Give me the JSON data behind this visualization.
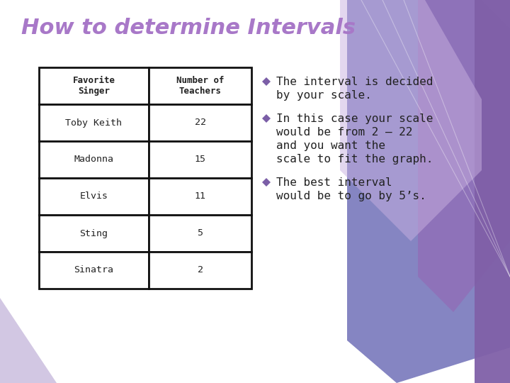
{
  "title": "How to determine Intervals",
  "title_color": "#a878c8",
  "title_fontsize": 22,
  "background_color": "#ffffff",
  "table_headers": [
    "Favorite\nSinger",
    "Number of\nTeachers"
  ],
  "table_rows": [
    [
      "Toby Keith",
      "22"
    ],
    [
      "Madonna",
      "15"
    ],
    [
      "Elvis",
      "11"
    ],
    [
      "Sting",
      "5"
    ],
    [
      "Sinatra",
      "2"
    ]
  ],
  "bullet_points": [
    {
      "lines": [
        "The interval is decided",
        "by your scale."
      ]
    },
    {
      "lines": [
        "In this case your scale",
        "would be from 2 – 22",
        "and you want the",
        "scale to fit the graph."
      ]
    },
    {
      "lines": [
        "The best interval",
        "would be to go by 5’s."
      ]
    }
  ],
  "bullet_color": "#7b5ea7",
  "text_color": "#222222",
  "table_header_bg": "#ffffff",
  "table_border_color": "#111111",
  "poly1_color": "#7070b8",
  "poly2_color": "#9070b8",
  "poly3_color": "#c8b0e0",
  "poly4_color": "#c0a8d8",
  "poly_bl_color": "#c0b0d8"
}
